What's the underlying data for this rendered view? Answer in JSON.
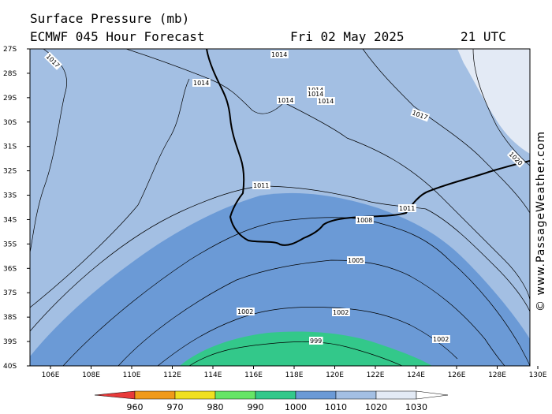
{
  "header": {
    "title": "Surface Pressure (mb)",
    "subtitle": "ECMWF 045 Hour Forecast",
    "date": "Fri 02 May 2025",
    "time": "21 UTC"
  },
  "axes": {
    "lat_labels": [
      "27S",
      "28S",
      "29S",
      "30S",
      "31S",
      "32S",
      "33S",
      "34S",
      "35S",
      "36S",
      "37S",
      "38S",
      "39S",
      "40S"
    ],
    "lon_labels": [
      "106E",
      "108E",
      "110E",
      "112E",
      "114E",
      "116E",
      "118E",
      "120E",
      "122E",
      "124E",
      "126E",
      "128E",
      "130E"
    ]
  },
  "isobar_labels": [
    "1017",
    "1014",
    "1014",
    "1014",
    "1014",
    "1014",
    "1014",
    "1017",
    "1020",
    "1011",
    "1011",
    "1008",
    "1005",
    "1002",
    "1002",
    "1002",
    "999"
  ],
  "credit": "© www.PassageWeather.com",
  "legend": {
    "labels": [
      "960",
      "970",
      "980",
      "990",
      "1000",
      "1010",
      "1020",
      "1030"
    ],
    "colors": [
      "#e83a3a",
      "#f09a1a",
      "#f0e020",
      "#66e566",
      "#33c88a",
      "#6b9ad6",
      "#a3bfe3",
      "#e3eaf5"
    ]
  },
  "colors": {
    "band_1020": "#e3eaf5",
    "band_1010": "#a3bfe3",
    "band_1000": "#6b9ad6",
    "band_990": "#33c88a"
  }
}
